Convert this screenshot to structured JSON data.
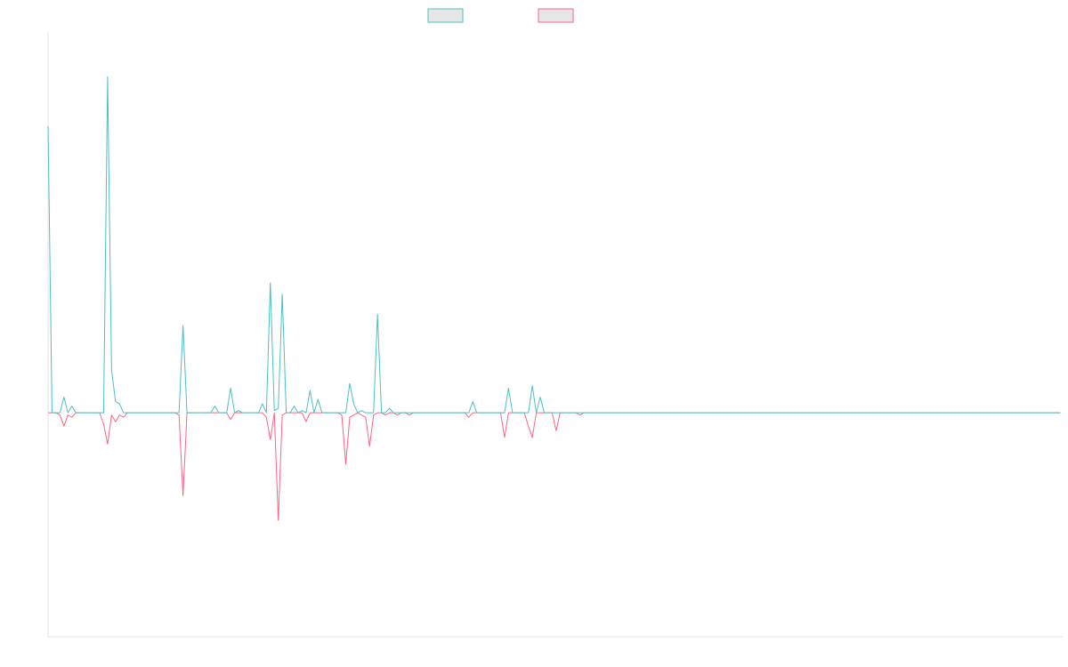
{
  "chart_data": {
    "type": "line",
    "title": "",
    "xlabel": "",
    "ylabel": "",
    "legend_position": "top-center",
    "grid": false,
    "x_count": 256,
    "ylim": [
      -100,
      170
    ],
    "series": [
      {
        "color": "#4bc0c0",
        "values": [
          128,
          0,
          0,
          0,
          7,
          0,
          3,
          0,
          0,
          0,
          0,
          0,
          0,
          0,
          0,
          150,
          19,
          5,
          4,
          0,
          0,
          0,
          0,
          0,
          0,
          0,
          0,
          0,
          0,
          0,
          0,
          0,
          0,
          0,
          39,
          0,
          0,
          0,
          0,
          0,
          0,
          0,
          3,
          0,
          0,
          0,
          11,
          0,
          1,
          0,
          0,
          0,
          0,
          0,
          4,
          0,
          58,
          1,
          2,
          53,
          0,
          0,
          3,
          0,
          1,
          0,
          10,
          0,
          6,
          0,
          0,
          0,
          0,
          0,
          0,
          0,
          13,
          4,
          0,
          1,
          0,
          0,
          0,
          44,
          0,
          0,
          2,
          0,
          0,
          0,
          0,
          0,
          0,
          0,
          0,
          0,
          0,
          0,
          0,
          0,
          0,
          0,
          0,
          0,
          0,
          0,
          0,
          5,
          0,
          0,
          0,
          0,
          0,
          0,
          0,
          0,
          11,
          0,
          0,
          0,
          0,
          0,
          12,
          0,
          7,
          0,
          0,
          0,
          0,
          0,
          0,
          0,
          0,
          0,
          0,
          0,
          0,
          0,
          0,
          0,
          0,
          0,
          0,
          0,
          0,
          0,
          0,
          0,
          0,
          0,
          0,
          0,
          0,
          0,
          0,
          0,
          0,
          0,
          0,
          0,
          0,
          0,
          0,
          0,
          0,
          0,
          0,
          0,
          0,
          0,
          0,
          0,
          0,
          0,
          0,
          0,
          0,
          0,
          0,
          0,
          0,
          0,
          0,
          0,
          0,
          0,
          0,
          0,
          0,
          0,
          0,
          0,
          0,
          0,
          0,
          0,
          0,
          0,
          0,
          0,
          0,
          0,
          0,
          0,
          0,
          0,
          0,
          0,
          0,
          0,
          0,
          0,
          0,
          0,
          0,
          0,
          0,
          0,
          0,
          0,
          0,
          0,
          0,
          0,
          0,
          0,
          0,
          0,
          0,
          0,
          0,
          0,
          0,
          0,
          0,
          0,
          0,
          0,
          0,
          0,
          0,
          0,
          0,
          0,
          0,
          0,
          0,
          0,
          0,
          0,
          0,
          0,
          0,
          0,
          0,
          0
        ]
      },
      {
        "color": "#ff6384",
        "values": [
          0,
          0,
          0,
          -1,
          -6,
          -1,
          -2,
          0,
          0,
          0,
          0,
          0,
          0,
          0,
          -5,
          -14,
          -1,
          -4,
          -1,
          -2,
          0,
          0,
          0,
          0,
          0,
          0,
          0,
          0,
          0,
          0,
          0,
          0,
          0,
          -1,
          -37,
          0,
          0,
          0,
          0,
          0,
          0,
          0,
          0,
          0,
          0,
          0,
          -3,
          0,
          0,
          0,
          0,
          0,
          0,
          0,
          0,
          -2,
          -12,
          0,
          -48,
          -1,
          0,
          0,
          0,
          0,
          0,
          -4,
          0,
          0,
          0,
          0,
          0,
          0,
          0,
          0,
          -1,
          -23,
          -2,
          -1,
          0,
          -1,
          -2,
          -15,
          -1,
          0,
          0,
          -1,
          0,
          0,
          -1,
          0,
          0,
          -1,
          0,
          0,
          0,
          0,
          0,
          0,
          0,
          0,
          0,
          0,
          0,
          0,
          0,
          0,
          -2,
          0,
          0,
          0,
          0,
          0,
          0,
          0,
          0,
          -11,
          0,
          0,
          0,
          0,
          0,
          -6,
          -11,
          0,
          0,
          0,
          0,
          0,
          -8,
          0,
          0,
          0,
          0,
          0,
          -1,
          0,
          0,
          0,
          0,
          0,
          0,
          0,
          0,
          0,
          0,
          0,
          0,
          0,
          0,
          0,
          0,
          0,
          0,
          0,
          0,
          0,
          0,
          0,
          0,
          0,
          0,
          0,
          0,
          0,
          0,
          0,
          0,
          0,
          0,
          0,
          0,
          0,
          0,
          0,
          0,
          0,
          0,
          0,
          0,
          0,
          0,
          0,
          0,
          0,
          0,
          0,
          0,
          0,
          0,
          0,
          0,
          0,
          0,
          0,
          0,
          0,
          0,
          0,
          0,
          0,
          0,
          0,
          0,
          0,
          0,
          0,
          0,
          0,
          0,
          0,
          0,
          0,
          0,
          0,
          0,
          0,
          0,
          0,
          0,
          0,
          0,
          0,
          0,
          0,
          0,
          0,
          0,
          0,
          0,
          0,
          0,
          0,
          0,
          0,
          0,
          0,
          0,
          0,
          0,
          0,
          0,
          0,
          0,
          0,
          0,
          0,
          0,
          0,
          0,
          0,
          0,
          0,
          0,
          0,
          0,
          0
        ]
      }
    ]
  }
}
